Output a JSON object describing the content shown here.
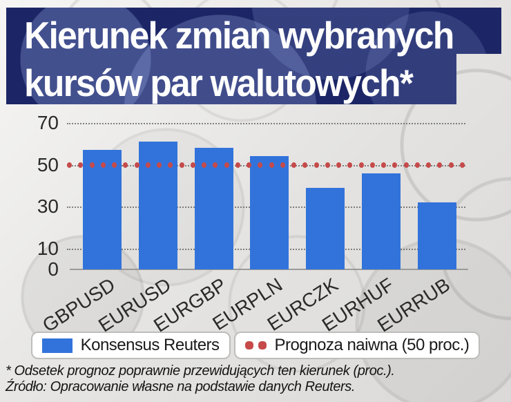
{
  "title": {
    "line1": "Kierunek zmian wybranych",
    "line2": "kursów par walutowych*"
  },
  "chart_data": {
    "type": "bar",
    "categories": [
      "GBPUSD",
      "EURUSD",
      "EURGBP",
      "EURPLN",
      "EURCZK",
      "EURHUF",
      "EURRUB"
    ],
    "series": [
      {
        "name": "Konsensus Reuters",
        "type": "bar",
        "values": [
          57,
          61,
          58,
          54,
          39,
          46,
          32
        ],
        "color": "#3273db"
      },
      {
        "name": "Prognoza naiwna (50 proc.)",
        "type": "dotted-line",
        "value": 50,
        "color": "#c64a4a"
      }
    ],
    "ylim": [
      0,
      70
    ],
    "yticks": [
      0,
      10,
      30,
      50,
      70
    ],
    "grid": "dotted-horizontal",
    "legend_position": "bottom",
    "xlabel": "",
    "ylabel": ""
  },
  "legend": {
    "items": [
      {
        "label": "Konsensus Reuters",
        "swatch": "blue-bar"
      },
      {
        "label": "Prognoza naiwna (50 proc.)",
        "swatch": "red-dots"
      }
    ]
  },
  "footer": {
    "note": "* Odsetek prognoz poprawnie przewidujących ten kierunek (proc.).",
    "source": "Źródło: Opracowanie własne na podstawie danych Reuters."
  },
  "colors": {
    "bar": "#3273db",
    "naive_dots": "#c64a4a",
    "banner": "#1c2666",
    "title_text": "#fdfdfd",
    "axis_text": "#2a2a2a"
  }
}
